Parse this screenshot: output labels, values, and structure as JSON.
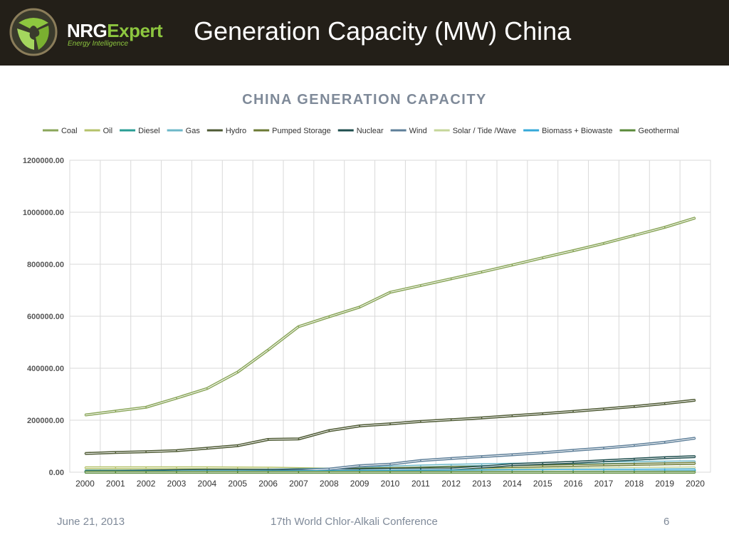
{
  "slide": {
    "title": "Generation Capacity (MW) China",
    "brand_part1": "NRG",
    "brand_part2": "Expert",
    "brand_tagline": "Energy Intelligence"
  },
  "footer": {
    "date": "June 21, 2013",
    "conference": "17th World Chlor-Alkali Conference",
    "page_number": "6"
  },
  "colors": {
    "header_bg": "#231f18",
    "brand_green": "#8dc63f",
    "chart_title": "#7f8a99"
  },
  "chart_data": {
    "type": "line",
    "title": "CHINA GENERATION CAPACITY",
    "xlabel": "",
    "ylabel": "",
    "ylim": [
      0,
      1200000
    ],
    "yticks": [
      "0.00",
      "200000.00",
      "400000.00",
      "600000.00",
      "800000.00",
      "1000000.00",
      "1200000.00"
    ],
    "categories": [
      "2000",
      "2001",
      "2002",
      "2003",
      "2004",
      "2005",
      "2006",
      "2007",
      "2008",
      "2009",
      "2010",
      "2011",
      "2012",
      "2013",
      "2014",
      "2015",
      "2016",
      "2017",
      "2018",
      "2019",
      "2020"
    ],
    "grid": true,
    "legend_position": "top",
    "series": [
      {
        "name": "Coal",
        "color": "#8aa65a",
        "values": [
          220000,
          235000,
          250000,
          285000,
          322000,
          385000,
          470000,
          560000,
          598000,
          635000,
          692000,
          718000,
          744000,
          770000,
          797000,
          825000,
          852000,
          880000,
          911000,
          942000,
          978000
        ]
      },
      {
        "name": "Oil",
        "color": "#b5c26a",
        "values": [
          17000,
          17000,
          17000,
          17000,
          17000,
          16500,
          16000,
          14000,
          12000,
          11000,
          10500,
          10000,
          9500,
          9000,
          8500,
          8000,
          7500,
          7000,
          6500,
          6000,
          5500
        ]
      },
      {
        "name": "Diesel",
        "color": "#2a9d94",
        "values": [
          4500,
          4500,
          4600,
          4700,
          4800,
          4900,
          5000,
          5100,
          5200,
          5300,
          5400,
          5500,
          5600,
          5700,
          5800,
          5900,
          6000,
          6100,
          6200,
          6300,
          6400
        ]
      },
      {
        "name": "Gas",
        "color": "#6db8c8",
        "values": [
          2000,
          2200,
          2500,
          3000,
          4000,
          6000,
          8000,
          10000,
          12000,
          14000,
          20000,
          24000,
          27000,
          29000,
          31000,
          33000,
          35000,
          37000,
          38000,
          39000,
          40000
        ]
      },
      {
        "name": "Hydro",
        "color": "#4e5a34",
        "values": [
          72000,
          76000,
          79000,
          83000,
          92000,
          102000,
          126000,
          128000,
          160000,
          178000,
          186000,
          195000,
          202000,
          209000,
          217000,
          225000,
          234000,
          243000,
          253000,
          264000,
          277000
        ]
      },
      {
        "name": "Pumped Storage",
        "color": "#6b7a34",
        "values": [
          3000,
          3500,
          4000,
          4500,
          5000,
          5500,
          6500,
          8000,
          9500,
          12000,
          14000,
          16000,
          18000,
          20000,
          22000,
          24000,
          26000,
          28000,
          30000,
          32000,
          34000
        ]
      },
      {
        "name": "Nuclear",
        "color": "#1e4d4d",
        "values": [
          2100,
          2100,
          4500,
          6200,
          7000,
          7000,
          7000,
          9000,
          9000,
          9000,
          11000,
          12000,
          13000,
          20000,
          29000,
          34000,
          38000,
          44000,
          50000,
          56000,
          60000
        ]
      },
      {
        "name": "Wind",
        "color": "#5e7f99",
        "values": [
          300,
          400,
          500,
          600,
          800,
          1300,
          2600,
          5900,
          12000,
          25000,
          31000,
          45000,
          53000,
          60000,
          67000,
          75000,
          84000,
          93000,
          103000,
          115000,
          131000
        ]
      },
      {
        "name": "Solar / Tide /Wave",
        "color": "#c5d69a",
        "values": [
          20,
          30,
          40,
          50,
          60,
          70,
          80,
          100,
          150,
          300,
          800,
          3000,
          5000,
          8000,
          10000,
          12000,
          13000,
          14000,
          15000,
          16000,
          17000
        ]
      },
      {
        "name": "Biomass + Biowaste",
        "color": "#35a8d8",
        "values": [
          1000,
          1200,
          1400,
          1600,
          1800,
          2000,
          2300,
          2600,
          3000,
          3500,
          4000,
          4500,
          5000,
          5500,
          6000,
          6500,
          7000,
          7500,
          8000,
          8500,
          9000
        ]
      },
      {
        "name": "Geothermal",
        "color": "#5a8a3a",
        "values": [
          30,
          30,
          30,
          30,
          30,
          30,
          30,
          30,
          30,
          30,
          30,
          30,
          30,
          30,
          30,
          30,
          30,
          30,
          30,
          30,
          30
        ]
      }
    ]
  }
}
